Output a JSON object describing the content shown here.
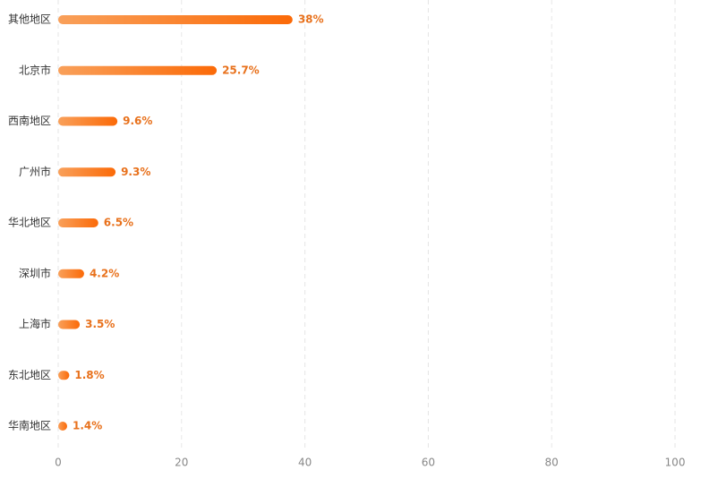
{
  "chart_data": {
    "type": "bar",
    "orientation": "horizontal",
    "categories": [
      "其他地区",
      "北京市",
      "西南地区",
      "广州市",
      "华北地区",
      "深圳市",
      "上海市",
      "东北地区",
      "华南地区"
    ],
    "values": [
      38,
      25.7,
      9.6,
      9.3,
      6.5,
      4.2,
      3.5,
      1.8,
      1.4
    ],
    "value_labels": [
      "38%",
      "25.7%",
      "9.6%",
      "9.3%",
      "6.5%",
      "4.2%",
      "3.5%",
      "1.8%",
      "1.4%"
    ],
    "color": [
      "#f9a05a",
      "#fb6a08"
    ],
    "label_color": "#e8711c",
    "xlim": [
      0,
      100
    ],
    "xticks": [
      0,
      20,
      40,
      60,
      80,
      100
    ],
    "grid": true
  }
}
